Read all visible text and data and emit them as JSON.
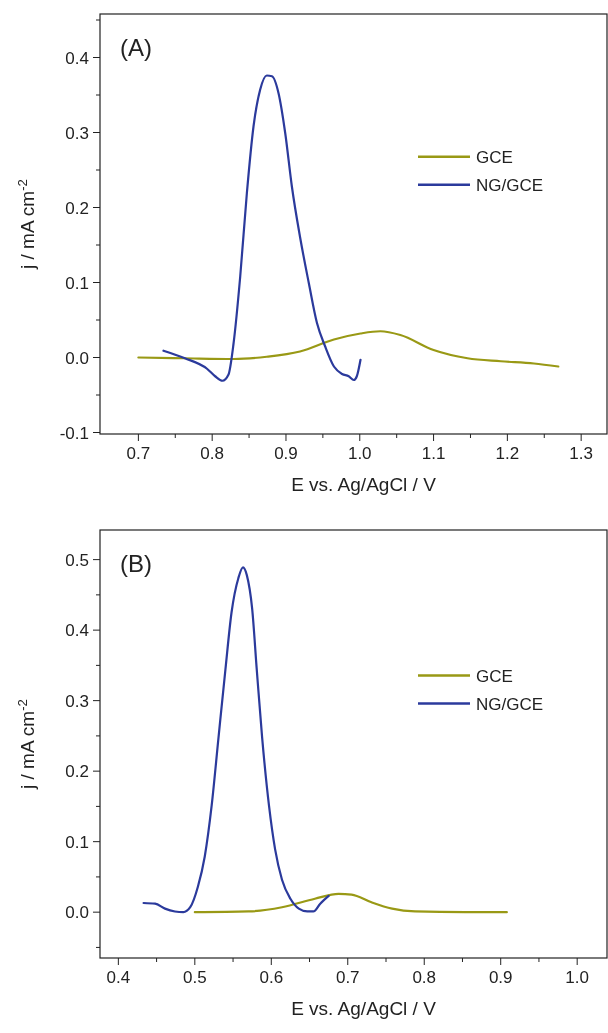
{
  "chart_data": [
    {
      "type": "line",
      "xlabel": "E vs. Ag/AgCl / V",
      "ylabel": "j / mA cm$^{-2}$",
      "annotations": [
        "(A)"
      ],
      "legend": "right",
      "grid": false,
      "line_style": "solid",
      "xlim": [
        0.648,
        1.335
      ],
      "ylim": [
        -0.102,
        0.458
      ],
      "xticks": [
        0.7,
        {
          "value": 0.75,
          "label": null
        },
        0.8,
        {
          "value": 0.85,
          "label": null
        },
        0.9,
        {
          "value": 0.95,
          "label": null
        },
        {
          "value": 1,
          "label": "1.0"
        },
        {
          "value": 1.05,
          "label": null
        },
        1.1,
        {
          "value": 1.15,
          "label": null
        },
        1.2,
        {
          "value": 1.25,
          "label": null
        },
        1.3
      ],
      "yticks": [
        -0.1,
        {
          "value": -0.05,
          "label": null
        },
        {
          "value": 0,
          "label": "0.0"
        },
        {
          "value": 0.05,
          "label": null
        },
        0.1,
        {
          "value": 0.15,
          "label": null
        },
        0.2,
        {
          "value": 0.25,
          "label": null
        },
        0.3,
        {
          "value": 0.35,
          "label": null
        },
        0.4,
        {
          "value": 0.45,
          "label": null
        }
      ],
      "series": [
        {
          "name": "GCE",
          "color": "#999915",
          "x": [
            0.7,
            0.761,
            0.829,
            0.874,
            0.919,
            0.965,
            1.001,
            1.028,
            1.055,
            1.1,
            1.146,
            1.191,
            1.236,
            1.269
          ],
          "values": [
            0,
            -0.001,
            -0.002,
            0.001,
            0.008,
            0.024,
            0.032,
            0.035,
            0.03,
            0.01,
            -0.001,
            -0.005,
            -0.008,
            -0.012
          ]
        },
        {
          "name": "NG/GCE",
          "color": "#2b3a9c",
          "x": [
            0.734,
            0.763,
            0.793,
            0.804,
            0.814,
            0.822,
            0.829,
            0.838,
            0.847,
            0.856,
            0.865,
            0.874,
            0.881,
            0.89,
            0.899,
            0.908,
            0.919,
            0.931,
            0.942,
            0.953,
            0.965,
            0.976,
            0.985,
            0.992,
            0.996,
            1.001
          ],
          "values": [
            0.009,
            -0.001,
            -0.015,
            -0.025,
            -0.031,
            -0.023,
            0.019,
            0.108,
            0.219,
            0.308,
            0.357,
            0.376,
            0.375,
            0.352,
            0.299,
            0.228,
            0.161,
            0.099,
            0.046,
            0.015,
            -0.012,
            -0.022,
            -0.025,
            -0.03,
            -0.025,
            -0.003
          ]
        }
      ]
    },
    {
      "type": "line",
      "xlabel": "E vs. Ag/AgCl / V",
      "ylabel": "j / mA cm$^{-2}$",
      "annotations": [
        "(B)"
      ],
      "legend": "right",
      "grid": false,
      "line_style": "solid",
      "xlim": [
        0.376,
        1.039
      ],
      "ylim": [
        -0.065,
        0.542
      ],
      "xticks": [
        0.4,
        {
          "value": 0.45,
          "label": null
        },
        0.5,
        {
          "value": 0.55,
          "label": null
        },
        0.6,
        {
          "value": 0.65,
          "label": null
        },
        0.7,
        {
          "value": 0.75,
          "label": null
        },
        0.8,
        {
          "value": 0.85,
          "label": null
        },
        0.9,
        {
          "value": 0.95,
          "label": null
        },
        {
          "value": 1,
          "label": "1.0"
        }
      ],
      "yticks": [
        {
          "value": -0.05,
          "label": null
        },
        {
          "value": 0,
          "label": "0.0"
        },
        {
          "value": 0.05,
          "label": null
        },
        0.1,
        {
          "value": 0.15,
          "label": null
        },
        0.2,
        {
          "value": 0.25,
          "label": null
        },
        0.3,
        {
          "value": 0.35,
          "label": null
        },
        0.4,
        {
          "value": 0.45,
          "label": null
        },
        0.5
      ],
      "series": [
        {
          "name": "GCE",
          "color": "#999915",
          "x": [
            0.5,
            0.57,
            0.614,
            0.657,
            0.688,
            0.705,
            0.731,
            0.758,
            0.788,
            0.853,
            0.908
          ],
          "values": [
            0,
            0.001,
            0.007,
            0.019,
            0.026,
            0.025,
            0.014,
            0.005,
            0.001,
            0,
            0
          ]
        },
        {
          "name": "NG/GCE",
          "color": "#2b3a9c",
          "x": [
            0.433,
            0.448,
            0.461,
            0.474,
            0.485,
            0.494,
            0.504,
            0.513,
            0.522,
            0.531,
            0.54,
            0.548,
            0.557,
            0.563,
            0.568,
            0.575,
            0.581,
            0.588,
            0.597,
            0.605,
            0.614,
            0.625,
            0.636,
            0.647,
            0.655,
            0.664,
            0.675
          ],
          "values": [
            0.013,
            0.012,
            0.005,
            0.001,
            0,
            0.007,
            0.036,
            0.079,
            0.151,
            0.248,
            0.344,
            0.425,
            0.474,
            0.489,
            0.478,
            0.43,
            0.344,
            0.248,
            0.151,
            0.089,
            0.046,
            0.019,
            0.005,
            0.001,
            0.001,
            0.012,
            0.023
          ]
        }
      ]
    }
  ]
}
